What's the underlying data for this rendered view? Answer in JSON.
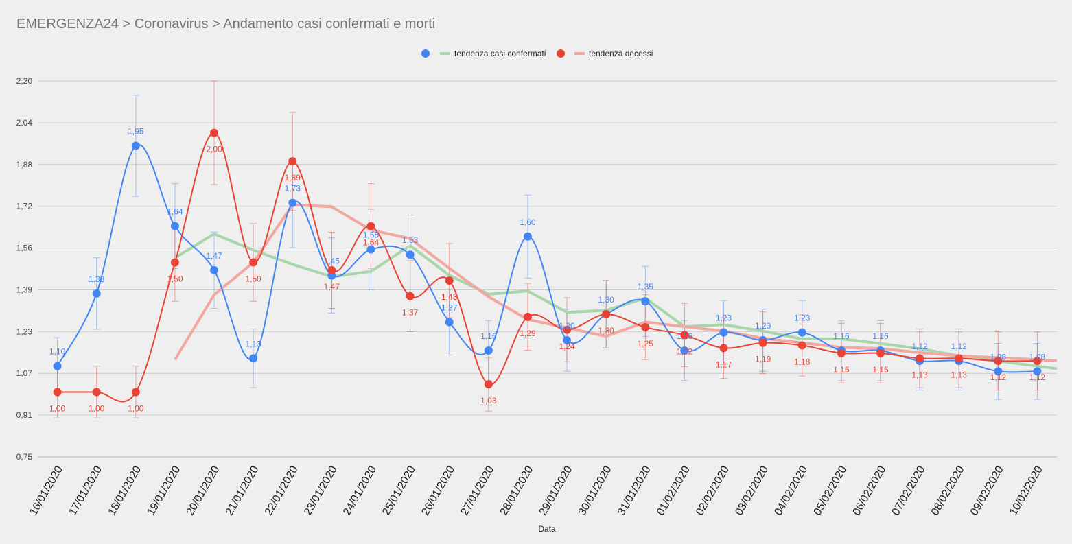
{
  "chart_data": {
    "type": "line",
    "title": "EMERGENZA24 > Coronavirus > Andamento casi confermati e morti",
    "xlabel": "Data",
    "ylabel": "",
    "ylim": [
      0.75,
      2.2
    ],
    "y_ticks": [
      "0,75",
      "0,91",
      "1,07",
      "1,23",
      "1,39",
      "1,56",
      "1,72",
      "1,88",
      "2,04",
      "2,20"
    ],
    "grid": true,
    "legend": "top",
    "curve": "smooth",
    "error_bars": {
      "type": "percent",
      "value": 10
    },
    "categories": [
      "16/01/2020",
      "17/01/2020",
      "18/01/2020",
      "19/01/2020",
      "20/01/2020",
      "21/01/2020",
      "22/01/2020",
      "23/01/2020",
      "24/01/2020",
      "25/01/2020",
      "26/01/2020",
      "27/01/2020",
      "28/01/2020",
      "29/01/2020",
      "30/01/2020",
      "31/01/2020",
      "01/02/2020",
      "02/02/2020",
      "03/02/2020",
      "04/02/2020",
      "05/02/2020",
      "06/02/2020",
      "07/02/2020",
      "08/02/2020",
      "09/02/2020",
      "10/02/2020"
    ],
    "series": [
      {
        "color": "#4285f4",
        "label_position": "above",
        "values": [
          1.1,
          1.38,
          1.95,
          1.64,
          1.47,
          1.13,
          1.73,
          1.45,
          1.55,
          1.53,
          1.27,
          1.16,
          1.6,
          1.2,
          1.3,
          1.35,
          1.16,
          1.23,
          1.2,
          1.23,
          1.16,
          1.16,
          1.12,
          1.12,
          1.08,
          1.08
        ],
        "labels": [
          "1,10",
          "1,38",
          "1,95",
          "1,64",
          "1,47",
          "1,13",
          "1,73",
          "1,45",
          "1,55",
          "1,53",
          "1,27",
          "1,16",
          "1,60",
          "1,20",
          "1,30",
          "1,35",
          "1,16",
          "1,23",
          "1,20",
          "1,23",
          "1,16",
          "1,16",
          "1,12",
          "1,12",
          "1,08",
          "1,08"
        ]
      },
      {
        "color": "#ea4335",
        "label_position": "below",
        "values": [
          1.0,
          1.0,
          1.0,
          1.5,
          2.0,
          1.5,
          1.89,
          1.47,
          1.64,
          1.37,
          1.43,
          1.03,
          1.29,
          1.24,
          1.3,
          1.25,
          1.22,
          1.17,
          1.19,
          1.18,
          1.15,
          1.15,
          1.13,
          1.13,
          1.12,
          1.12
        ],
        "labels": [
          "1,00",
          "1,00",
          "1,00",
          "1,50",
          "2,00",
          "1,50",
          "1,89",
          "1,47",
          "1,64",
          "1,37",
          "1,43",
          "1,03",
          "1,29",
          "1,24",
          "1,30",
          "1,25",
          "1,22",
          "1,17",
          "1,19",
          "1,18",
          "1,15",
          "1,15",
          "1,13",
          "1,13",
          "1,12",
          "1,12"
        ]
      }
    ],
    "trendlines": [
      {
        "name": "tendenza casi confermati",
        "color": "#a8d5aa",
        "values": [
          null,
          null,
          null,
          1.5175,
          1.61,
          1.5475,
          1.4925,
          1.445,
          1.465,
          1.565,
          1.45,
          1.3775,
          1.39,
          1.3075,
          1.315,
          1.3625,
          1.2525,
          1.26,
          1.235,
          1.205,
          1.205,
          1.1875,
          1.1675,
          1.14,
          1.12,
          1.1
        ]
      },
      {
        "name": "tendenza decessi",
        "color": "#f0a8a0",
        "values": [
          null,
          null,
          null,
          1.125,
          1.375,
          1.5,
          1.7225,
          1.715,
          1.625,
          1.5925,
          1.4775,
          1.3675,
          1.28,
          1.2475,
          1.215,
          1.27,
          1.2525,
          1.235,
          1.2075,
          1.19,
          1.1725,
          1.1675,
          1.1525,
          1.14,
          1.1325,
          1.125
        ]
      }
    ]
  }
}
